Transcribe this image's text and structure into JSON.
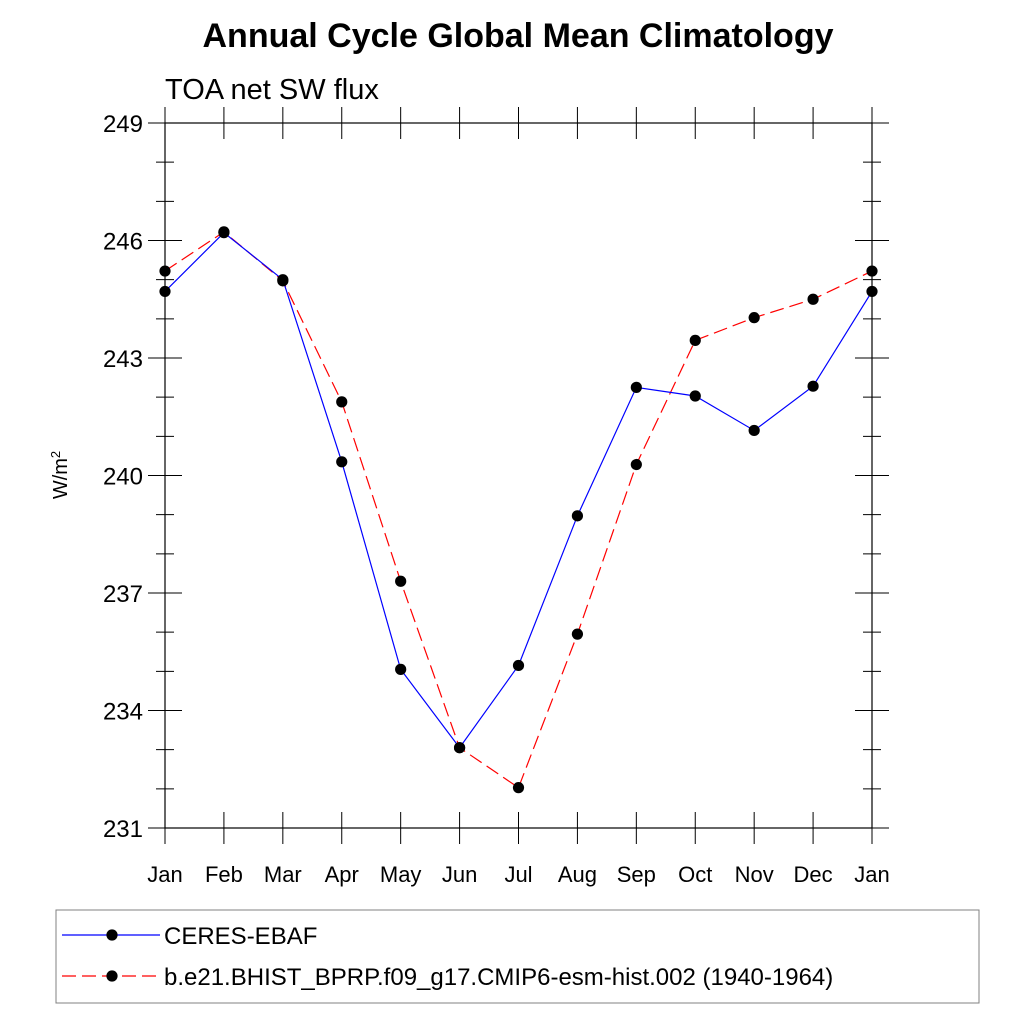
{
  "chart_data": {
    "type": "line",
    "title": "Annual Cycle Global Mean Climatology",
    "subtitle": "TOA net SW flux",
    "xlabel": "",
    "ylabel": "W/m",
    "ylabel_superscript": "2",
    "categories": [
      "Jan",
      "Feb",
      "Mar",
      "Apr",
      "May",
      "Jun",
      "Jul",
      "Aug",
      "Sep",
      "Oct",
      "Nov",
      "Dec",
      "Jan"
    ],
    "ylim": [
      231,
      249
    ],
    "yticks": [
      231,
      234,
      237,
      240,
      243,
      246,
      249
    ],
    "grid": false,
    "legend_position": "bottom",
    "series": [
      {
        "name": "CERES-EBAF",
        "color": "#0000ff",
        "dash": "solid",
        "marker": "filled-circle",
        "values": [
          244.7,
          246.2,
          245.0,
          240.35,
          235.05,
          233.05,
          235.15,
          238.97,
          242.25,
          242.03,
          241.15,
          242.28,
          244.7
        ]
      },
      {
        "name": "b.e21.BHIST_BPRP.f09_g17.CMIP6-esm-hist.002 (1940-1964)",
        "color": "#ff0000",
        "dash": "dashed",
        "marker": "filled-circle",
        "values": [
          245.22,
          246.22,
          244.97,
          241.88,
          237.3,
          233.05,
          232.03,
          235.95,
          240.28,
          243.45,
          244.03,
          244.5,
          245.22
        ]
      }
    ]
  }
}
